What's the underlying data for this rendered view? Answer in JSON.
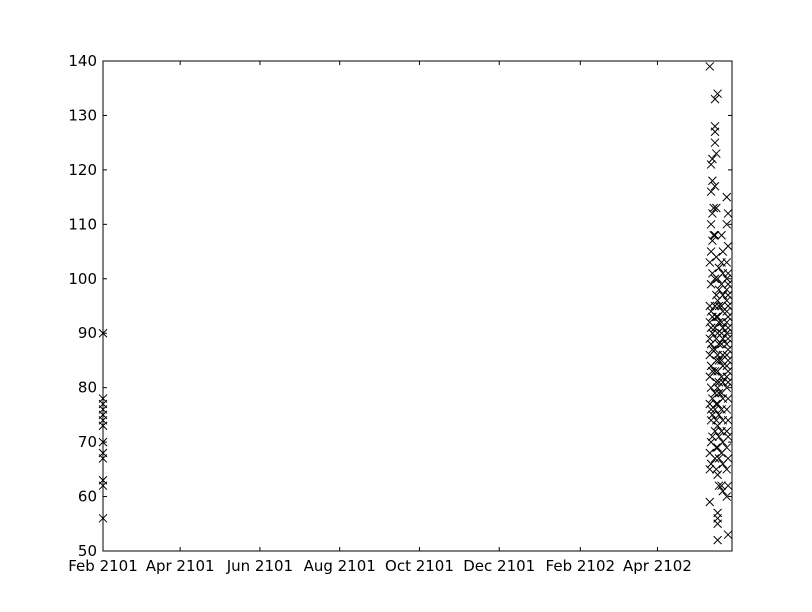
{
  "chart_data": {
    "type": "scatter",
    "marker": "x",
    "marker_color": "#000000",
    "xlabel": "",
    "ylabel": "",
    "title": "",
    "grid": false,
    "legend": "none",
    "xlim": [
      "2101-02-01",
      "2102-05-28"
    ],
    "ylim": [
      50,
      140
    ],
    "x_ticks": [
      "2101-02-01",
      "2101-04-01",
      "2101-06-01",
      "2101-08-01",
      "2101-10-01",
      "2101-12-01",
      "2102-02-01",
      "2102-04-01"
    ],
    "x_tick_labels": [
      "Feb 2101",
      "Apr 2101",
      "Jun 2101",
      "Aug 2101",
      "Oct 2101",
      "Dec 2101",
      "Feb 2102",
      "Apr 2102"
    ],
    "y_ticks": [
      50,
      60,
      70,
      80,
      90,
      100,
      110,
      120,
      130,
      140
    ],
    "y_tick_labels": [
      "50",
      "60",
      "70",
      "80",
      "90",
      "100",
      "110",
      "120",
      "130",
      "140"
    ],
    "series": [
      {
        "points": [
          [
            "2101-02-01",
            90
          ],
          [
            "2101-02-01",
            78
          ],
          [
            "2101-02-01",
            77
          ],
          [
            "2101-02-01",
            76
          ],
          [
            "2101-02-01",
            75
          ],
          [
            "2101-02-01",
            74
          ],
          [
            "2101-02-01",
            73
          ],
          [
            "2101-02-01",
            70
          ],
          [
            "2101-02-01",
            68
          ],
          [
            "2101-02-01",
            67
          ],
          [
            "2101-02-01",
            63
          ],
          [
            "2101-02-01",
            62
          ],
          [
            "2101-02-01",
            56
          ],
          [
            "2102-05-11",
            139
          ],
          [
            "2102-05-13",
            122
          ],
          [
            "2102-05-12",
            121
          ],
          [
            "2102-05-13",
            118
          ],
          [
            "2102-05-12",
            116
          ],
          [
            "2102-05-14",
            113
          ],
          [
            "2102-05-13",
            112
          ],
          [
            "2102-05-12",
            110
          ],
          [
            "2102-05-14",
            108
          ],
          [
            "2102-05-13",
            107
          ],
          [
            "2102-05-12",
            105
          ],
          [
            "2102-05-11",
            103
          ],
          [
            "2102-05-13",
            101
          ],
          [
            "2102-05-12",
            99
          ],
          [
            "2102-05-11",
            95
          ],
          [
            "2102-05-12",
            94
          ],
          [
            "2102-05-13",
            93
          ],
          [
            "2102-05-11",
            92
          ],
          [
            "2102-05-12",
            91
          ],
          [
            "2102-05-13",
            90
          ],
          [
            "2102-05-11",
            89
          ],
          [
            "2102-05-12",
            88
          ],
          [
            "2102-05-13",
            87
          ],
          [
            "2102-05-11",
            86
          ],
          [
            "2102-05-12",
            84
          ],
          [
            "2102-05-13",
            83
          ],
          [
            "2102-05-11",
            82
          ],
          [
            "2102-05-12",
            80
          ],
          [
            "2102-05-13",
            78
          ],
          [
            "2102-05-11",
            77
          ],
          [
            "2102-05-12",
            76
          ],
          [
            "2102-05-13",
            75
          ],
          [
            "2102-05-12",
            74
          ],
          [
            "2102-05-13",
            71
          ],
          [
            "2102-05-12",
            70
          ],
          [
            "2102-05-11",
            68
          ],
          [
            "2102-05-12",
            66
          ],
          [
            "2102-05-11",
            65
          ],
          [
            "2102-05-11",
            59
          ],
          [
            "2102-05-15",
            133
          ],
          [
            "2102-05-15",
            128
          ],
          [
            "2102-05-15",
            127
          ],
          [
            "2102-05-15",
            125
          ],
          [
            "2102-05-16",
            123
          ],
          [
            "2102-05-15",
            117
          ],
          [
            "2102-05-16",
            113
          ],
          [
            "2102-05-15",
            108
          ],
          [
            "2102-05-16",
            104
          ],
          [
            "2102-05-15",
            100
          ],
          [
            "2102-05-16",
            97
          ],
          [
            "2102-05-15",
            95
          ],
          [
            "2102-05-16",
            93
          ],
          [
            "2102-05-15",
            91
          ],
          [
            "2102-05-16",
            89
          ],
          [
            "2102-05-15",
            87
          ],
          [
            "2102-05-16",
            85
          ],
          [
            "2102-05-15",
            83
          ],
          [
            "2102-05-16",
            81
          ],
          [
            "2102-05-15",
            79
          ],
          [
            "2102-05-16",
            77
          ],
          [
            "2102-05-15",
            76
          ],
          [
            "2102-05-16",
            74
          ],
          [
            "2102-05-15",
            72
          ],
          [
            "2102-05-16",
            69
          ],
          [
            "2102-05-15",
            67
          ],
          [
            "2102-05-16",
            65
          ],
          [
            "2102-05-17",
            134
          ],
          [
            "2102-05-18",
            102
          ],
          [
            "2102-05-17",
            100
          ],
          [
            "2102-05-18",
            98
          ],
          [
            "2102-05-17",
            96
          ],
          [
            "2102-05-18",
            95
          ],
          [
            "2102-05-17",
            93
          ],
          [
            "2102-05-18",
            92
          ],
          [
            "2102-05-17",
            90
          ],
          [
            "2102-05-18",
            88
          ],
          [
            "2102-05-17",
            86
          ],
          [
            "2102-05-18",
            85
          ],
          [
            "2102-05-17",
            83
          ],
          [
            "2102-05-18",
            81
          ],
          [
            "2102-05-17",
            80
          ],
          [
            "2102-05-18",
            79
          ],
          [
            "2102-05-17",
            77
          ],
          [
            "2102-05-18",
            75
          ],
          [
            "2102-05-17",
            73
          ],
          [
            "2102-05-18",
            71
          ],
          [
            "2102-05-17",
            69
          ],
          [
            "2102-05-18",
            67
          ],
          [
            "2102-05-17",
            64
          ],
          [
            "2102-05-18",
            62
          ],
          [
            "2102-05-17",
            57
          ],
          [
            "2102-05-17",
            56
          ],
          [
            "2102-05-17",
            55
          ],
          [
            "2102-05-17",
            52
          ],
          [
            "2102-05-20",
            108
          ],
          [
            "2102-05-21",
            105
          ],
          [
            "2102-05-20",
            103
          ],
          [
            "2102-05-21",
            101
          ],
          [
            "2102-05-20",
            99
          ],
          [
            "2102-05-21",
            97
          ],
          [
            "2102-05-20",
            95
          ],
          [
            "2102-05-21",
            94
          ],
          [
            "2102-05-20",
            92
          ],
          [
            "2102-05-21",
            91
          ],
          [
            "2102-05-20",
            90
          ],
          [
            "2102-05-21",
            89
          ],
          [
            "2102-05-20",
            88
          ],
          [
            "2102-05-21",
            86
          ],
          [
            "2102-05-20",
            85
          ],
          [
            "2102-05-21",
            84
          ],
          [
            "2102-05-20",
            82
          ],
          [
            "2102-05-21",
            81
          ],
          [
            "2102-05-20",
            79
          ],
          [
            "2102-05-21",
            78
          ],
          [
            "2102-05-20",
            76
          ],
          [
            "2102-05-21",
            74
          ],
          [
            "2102-05-20",
            72
          ],
          [
            "2102-05-21",
            70
          ],
          [
            "2102-05-20",
            68
          ],
          [
            "2102-05-21",
            66
          ],
          [
            "2102-05-20",
            62
          ],
          [
            "2102-05-21",
            61
          ],
          [
            "2102-05-24",
            115
          ],
          [
            "2102-05-25",
            112
          ],
          [
            "2102-05-24",
            110
          ],
          [
            "2102-05-25",
            106
          ],
          [
            "2102-05-24",
            103
          ],
          [
            "2102-05-25",
            101
          ],
          [
            "2102-05-24",
            100
          ],
          [
            "2102-05-25",
            99
          ],
          [
            "2102-05-24",
            98
          ],
          [
            "2102-05-25",
            97
          ],
          [
            "2102-05-24",
            96
          ],
          [
            "2102-05-25",
            95
          ],
          [
            "2102-05-24",
            94
          ],
          [
            "2102-05-25",
            93
          ],
          [
            "2102-05-24",
            92
          ],
          [
            "2102-05-25",
            91
          ],
          [
            "2102-05-24",
            90
          ],
          [
            "2102-05-25",
            89
          ],
          [
            "2102-05-24",
            88
          ],
          [
            "2102-05-25",
            87
          ],
          [
            "2102-05-24",
            86
          ],
          [
            "2102-05-25",
            85
          ],
          [
            "2102-05-24",
            84
          ],
          [
            "2102-05-25",
            83
          ],
          [
            "2102-05-24",
            82
          ],
          [
            "2102-05-25",
            81
          ],
          [
            "2102-05-24",
            80
          ],
          [
            "2102-05-25",
            78
          ],
          [
            "2102-05-24",
            76
          ],
          [
            "2102-05-25",
            74
          ],
          [
            "2102-05-24",
            72
          ],
          [
            "2102-05-25",
            71
          ],
          [
            "2102-05-24",
            69
          ],
          [
            "2102-05-25",
            67
          ],
          [
            "2102-05-24",
            65
          ],
          [
            "2102-05-25",
            62
          ],
          [
            "2102-05-24",
            60
          ],
          [
            "2102-05-25",
            53
          ]
        ]
      }
    ]
  }
}
